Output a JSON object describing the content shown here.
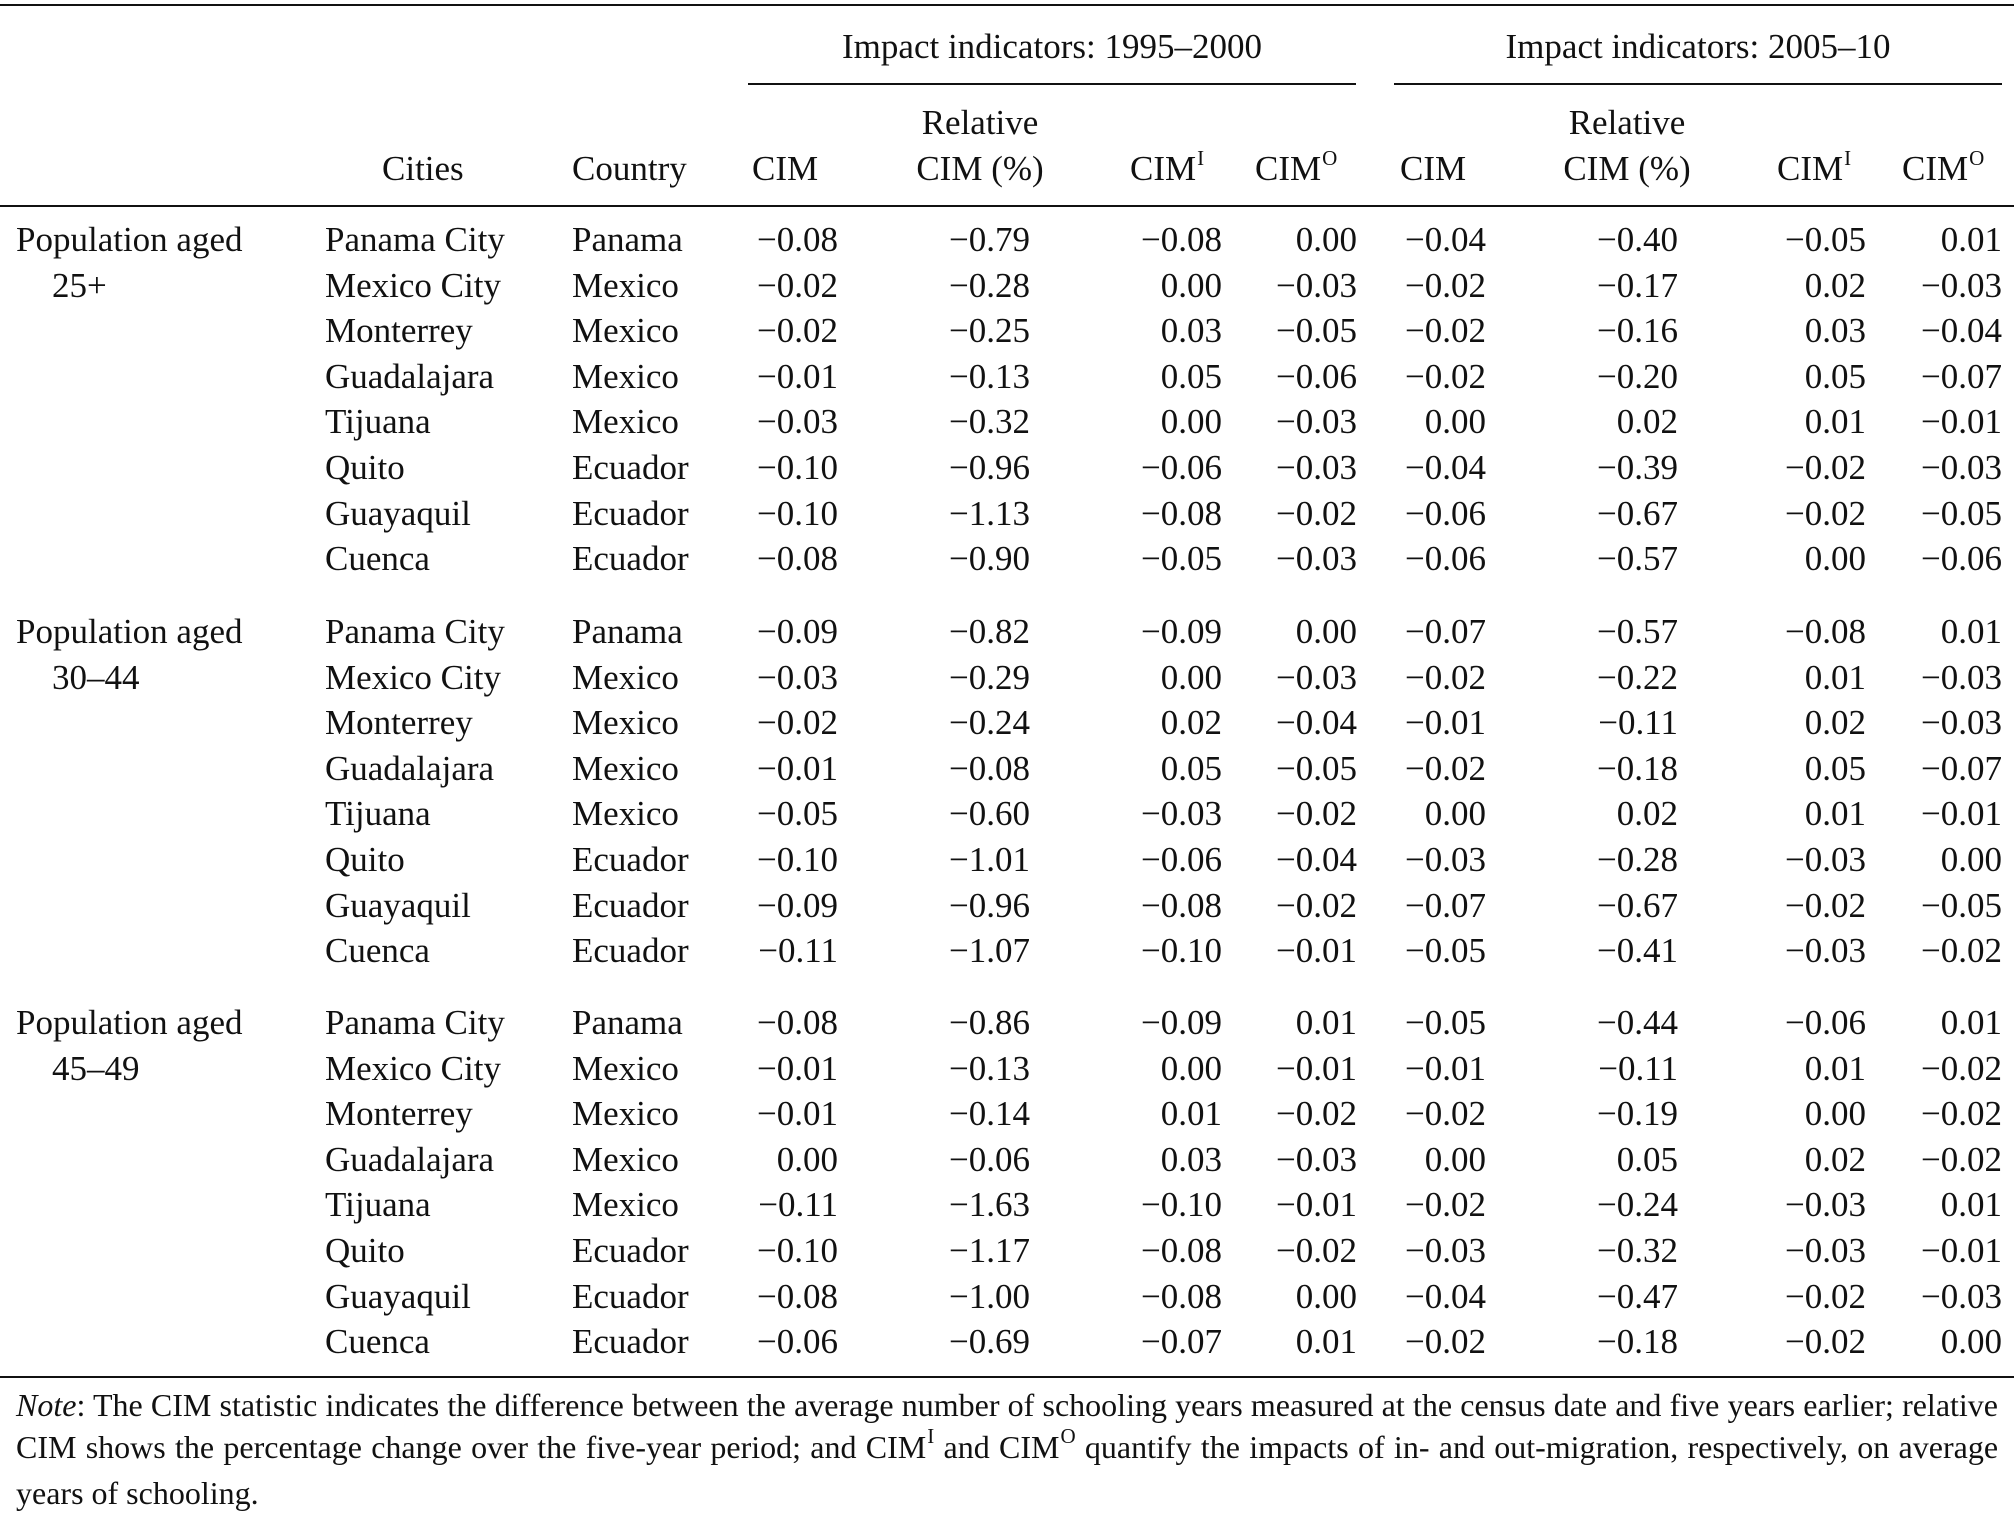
{
  "table": {
    "group_headers": [
      "Impact indicators: 1995–2000",
      "Impact indicators: 2005–10"
    ],
    "column_headers": {
      "cities": "Cities",
      "country": "Country",
      "cim": "CIM",
      "relative_line1": "Relative",
      "relative_line2": "CIM (%)",
      "cim_base": "CIM",
      "sup_in": "I",
      "sup_out": "O"
    },
    "sections": [
      {
        "label_line1": "Population aged",
        "label_line2": "25+",
        "rows": [
          {
            "city": "Panama City",
            "country": "Panama",
            "values": [
              "−0.08",
              "−0.79",
              "−0.08",
              "0.00",
              "−0.04",
              "−0.40",
              "−0.05",
              "0.01"
            ]
          },
          {
            "city": "Mexico City",
            "country": "Mexico",
            "values": [
              "−0.02",
              "−0.28",
              "0.00",
              "−0.03",
              "−0.02",
              "−0.17",
              "0.02",
              "−0.03"
            ]
          },
          {
            "city": "Monterrey",
            "country": "Mexico",
            "values": [
              "−0.02",
              "−0.25",
              "0.03",
              "−0.05",
              "−0.02",
              "−0.16",
              "0.03",
              "−0.04"
            ]
          },
          {
            "city": "Guadalajara",
            "country": "Mexico",
            "values": [
              "−0.01",
              "−0.13",
              "0.05",
              "−0.06",
              "−0.02",
              "−0.20",
              "0.05",
              "−0.07"
            ]
          },
          {
            "city": "Tijuana",
            "country": "Mexico",
            "values": [
              "−0.03",
              "−0.32",
              "0.00",
              "−0.03",
              "0.00",
              "0.02",
              "0.01",
              "−0.01"
            ]
          },
          {
            "city": "Quito",
            "country": "Ecuador",
            "values": [
              "−0.10",
              "−0.96",
              "−0.06",
              "−0.03",
              "−0.04",
              "−0.39",
              "−0.02",
              "−0.03"
            ]
          },
          {
            "city": "Guayaquil",
            "country": "Ecuador",
            "values": [
              "−0.10",
              "−1.13",
              "−0.08",
              "−0.02",
              "−0.06",
              "−0.67",
              "−0.02",
              "−0.05"
            ]
          },
          {
            "city": "Cuenca",
            "country": "Ecuador",
            "values": [
              "−0.08",
              "−0.90",
              "−0.05",
              "−0.03",
              "−0.06",
              "−0.57",
              "0.00",
              "−0.06"
            ]
          }
        ]
      },
      {
        "label_line1": "Population aged",
        "label_line2": "30–44",
        "rows": [
          {
            "city": "Panama City",
            "country": "Panama",
            "values": [
              "−0.09",
              "−0.82",
              "−0.09",
              "0.00",
              "−0.07",
              "−0.57",
              "−0.08",
              "0.01"
            ]
          },
          {
            "city": "Mexico City",
            "country": "Mexico",
            "values": [
              "−0.03",
              "−0.29",
              "0.00",
              "−0.03",
              "−0.02",
              "−0.22",
              "0.01",
              "−0.03"
            ]
          },
          {
            "city": "Monterrey",
            "country": "Mexico",
            "values": [
              "−0.02",
              "−0.24",
              "0.02",
              "−0.04",
              "−0.01",
              "−0.11",
              "0.02",
              "−0.03"
            ]
          },
          {
            "city": "Guadalajara",
            "country": "Mexico",
            "values": [
              "−0.01",
              "−0.08",
              "0.05",
              "−0.05",
              "−0.02",
              "−0.18",
              "0.05",
              "−0.07"
            ]
          },
          {
            "city": "Tijuana",
            "country": "Mexico",
            "values": [
              "−0.05",
              "−0.60",
              "−0.03",
              "−0.02",
              "0.00",
              "0.02",
              "0.01",
              "−0.01"
            ]
          },
          {
            "city": "Quito",
            "country": "Ecuador",
            "values": [
              "−0.10",
              "−1.01",
              "−0.06",
              "−0.04",
              "−0.03",
              "−0.28",
              "−0.03",
              "0.00"
            ]
          },
          {
            "city": "Guayaquil",
            "country": "Ecuador",
            "values": [
              "−0.09",
              "−0.96",
              "−0.08",
              "−0.02",
              "−0.07",
              "−0.67",
              "−0.02",
              "−0.05"
            ]
          },
          {
            "city": "Cuenca",
            "country": "Ecuador",
            "values": [
              "−0.11",
              "−1.07",
              "−0.10",
              "−0.01",
              "−0.05",
              "−0.41",
              "−0.03",
              "−0.02"
            ]
          }
        ]
      },
      {
        "label_line1": "Population aged",
        "label_line2": "45–49",
        "rows": [
          {
            "city": "Panama City",
            "country": "Panama",
            "values": [
              "−0.08",
              "−0.86",
              "−0.09",
              "0.01",
              "−0.05",
              "−0.44",
              "−0.06",
              "0.01"
            ]
          },
          {
            "city": "Mexico City",
            "country": "Mexico",
            "values": [
              "−0.01",
              "−0.13",
              "0.00",
              "−0.01",
              "−0.01",
              "−0.11",
              "0.01",
              "−0.02"
            ]
          },
          {
            "city": "Monterrey",
            "country": "Mexico",
            "values": [
              "−0.01",
              "−0.14",
              "0.01",
              "−0.02",
              "−0.02",
              "−0.19",
              "0.00",
              "−0.02"
            ]
          },
          {
            "city": "Guadalajara",
            "country": "Mexico",
            "values": [
              "0.00",
              "−0.06",
              "0.03",
              "−0.03",
              "0.00",
              "0.05",
              "0.02",
              "−0.02"
            ]
          },
          {
            "city": "Tijuana",
            "country": "Mexico",
            "values": [
              "−0.11",
              "−1.63",
              "−0.10",
              "−0.01",
              "−0.02",
              "−0.24",
              "−0.03",
              "0.01"
            ]
          },
          {
            "city": "Quito",
            "country": "Ecuador",
            "values": [
              "−0.10",
              "−1.17",
              "−0.08",
              "−0.02",
              "−0.03",
              "−0.32",
              "−0.03",
              "−0.01"
            ]
          },
          {
            "city": "Guayaquil",
            "country": "Ecuador",
            "values": [
              "−0.08",
              "−1.00",
              "−0.08",
              "0.00",
              "−0.04",
              "−0.47",
              "−0.02",
              "−0.03"
            ]
          },
          {
            "city": "Cuenca",
            "country": "Ecuador",
            "values": [
              "−0.06",
              "−0.69",
              "−0.07",
              "0.01",
              "−0.02",
              "−0.18",
              "−0.02",
              "0.00"
            ]
          }
        ]
      }
    ]
  },
  "note": {
    "label": "Note",
    "part1": ": The CIM statistic indicates the difference between the average number of schooling years measured at the census date and five years earlier; relative CIM shows the percentage change over the five-year period; and CIM",
    "sup1": "I",
    "part2": " and CIM",
    "sup2": "O",
    "part3": " quantify the impacts of in- and out-migration, respectively, on average years of schooling."
  }
}
